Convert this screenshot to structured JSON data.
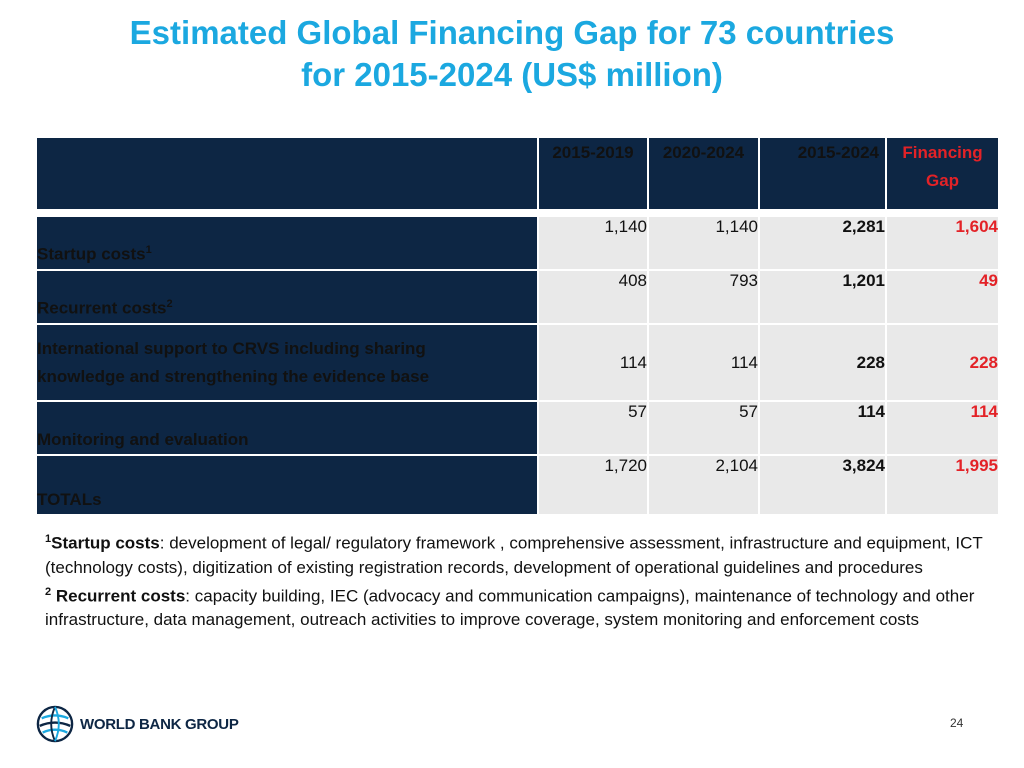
{
  "title": {
    "line1": "Estimated Global Financing Gap for 73 countries",
    "line2": "for 2015-2024 (US$ million)"
  },
  "table": {
    "headers": {
      "col1": "2015-2019",
      "col2": "2020-2024",
      "col3": "2015-2024",
      "gap_line1": "Financing",
      "gap_line2": "Gap"
    },
    "rows": [
      {
        "label": "Startup costs",
        "sup": "1",
        "v1": "1,140",
        "v2": "1,140",
        "total": "2,281",
        "gap": "1,604"
      },
      {
        "label": "Recurrent costs",
        "sup": "2",
        "v1": "408",
        "v2": "793",
        "total": "1,201",
        "gap": "49"
      },
      {
        "label_line1": "International support to CRVS including sharing",
        "label_line2": "knowledge and strengthening the evidence base",
        "v1": "114",
        "v2": "114",
        "total": "228",
        "gap": "228"
      },
      {
        "label": "Monitoring and evaluation",
        "v1": "57",
        "v2": "57",
        "total": "114",
        "gap": "114"
      },
      {
        "label": "TOTALs",
        "v1": "1,720",
        "v2": "2,104",
        "total": "3,824",
        "gap": "1,995"
      }
    ]
  },
  "notes": {
    "n1_marker": "1",
    "n1_term": "Startup costs",
    "n1_text": ": development of legal/ regulatory framework , comprehensive assessment, infrastructure and equipment, ICT (technology costs), digitization of existing registration records, development of operational guidelines and procedures",
    "n2_marker": "2",
    "n2_term": " Recurrent costs",
    "n2_text": ": capacity building, IEC (advocacy and communication campaigns), maintenance of technology and other infrastructure, data management, outreach activities to improve coverage, system monitoring and enforcement costs"
  },
  "footer": {
    "logo_text": "WORLD BANK GROUP",
    "page_number": "24"
  },
  "colors": {
    "title_blue": "#1ba8e0",
    "navy": "#0d2644",
    "red": "#e32227",
    "cell_gray": "#e9e9e9"
  }
}
